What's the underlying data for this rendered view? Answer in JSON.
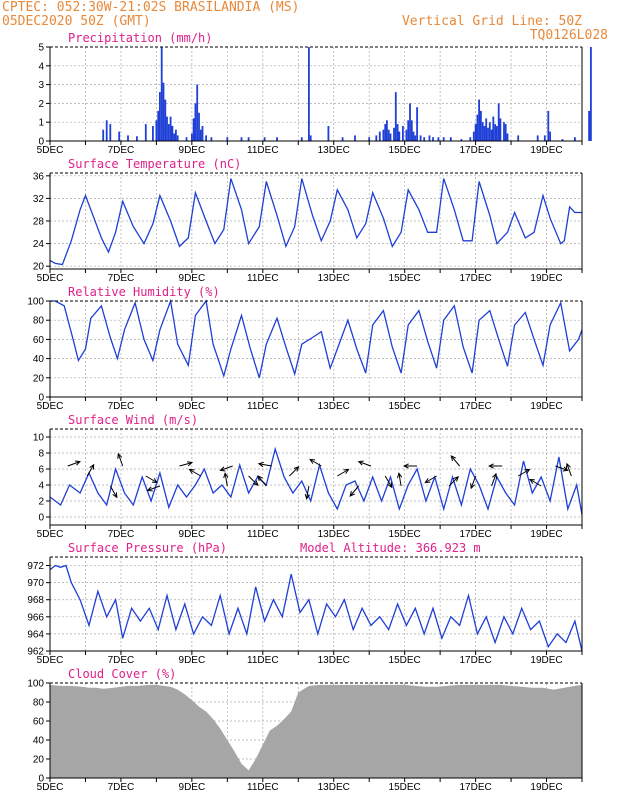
{
  "header": {
    "line1_left": "CPTEC:  052:30W-21:02S  BRASILANDIA (MS)",
    "line2_left": "05DEC2020 50Z (GMT)",
    "line1_right": "Vertical Grid Line: 50Z",
    "line2_right": "TQ0126L028"
  },
  "colors": {
    "header": "#e8893a",
    "title": "#e0208a",
    "line": "#1f3fd6",
    "cloud": "#a6a6a6",
    "grid": "#aaaaaa"
  },
  "chart_data": [
    {
      "type": "bar",
      "title": "Precipitation (mm/h)",
      "ylim": [
        0,
        5
      ],
      "yticks": [
        0,
        1,
        2,
        3,
        4,
        5
      ],
      "x_tick_labels": [
        "5DEC",
        "7DEC",
        "9DEC",
        "11DEC",
        "13DEC",
        "15DEC",
        "17DEC",
        "19DEC"
      ],
      "x_range_days": [
        0,
        15
      ],
      "bars": [
        [
          1.5,
          0.6
        ],
        [
          1.6,
          1.1
        ],
        [
          1.7,
          0.9
        ],
        [
          1.95,
          0.5
        ],
        [
          2.2,
          0.3
        ],
        [
          2.45,
          0.25
        ],
        [
          2.7,
          0.9
        ],
        [
          2.9,
          0.8
        ],
        [
          3.0,
          1.1
        ],
        [
          3.05,
          1.6
        ],
        [
          3.1,
          2.6
        ],
        [
          3.15,
          5.0
        ],
        [
          3.2,
          3.1
        ],
        [
          3.25,
          2.2
        ],
        [
          3.3,
          1.3
        ],
        [
          3.35,
          0.9
        ],
        [
          3.4,
          1.3
        ],
        [
          3.45,
          0.8
        ],
        [
          3.5,
          0.4
        ],
        [
          3.55,
          0.6
        ],
        [
          3.6,
          0.3
        ],
        [
          3.85,
          0.2
        ],
        [
          4.0,
          0.4
        ],
        [
          4.05,
          1.2
        ],
        [
          4.1,
          2.0
        ],
        [
          4.15,
          3.0
        ],
        [
          4.2,
          1.5
        ],
        [
          4.25,
          0.6
        ],
        [
          4.3,
          0.8
        ],
        [
          4.4,
          0.3
        ],
        [
          4.55,
          0.2
        ],
        [
          5.0,
          0.2
        ],
        [
          5.4,
          0.2
        ],
        [
          5.6,
          0.2
        ],
        [
          6.05,
          0.2
        ],
        [
          6.4,
          0.2
        ],
        [
          7.1,
          0.2
        ],
        [
          7.3,
          5.0
        ],
        [
          7.35,
          0.3
        ],
        [
          7.85,
          0.8
        ],
        [
          8.25,
          0.2
        ],
        [
          8.6,
          0.3
        ],
        [
          9.0,
          0.2
        ],
        [
          9.2,
          0.3
        ],
        [
          9.3,
          0.5
        ],
        [
          9.4,
          0.6
        ],
        [
          9.45,
          0.9
        ],
        [
          9.5,
          1.1
        ],
        [
          9.55,
          0.6
        ],
        [
          9.6,
          0.4
        ],
        [
          9.7,
          0.7
        ],
        [
          9.75,
          2.6
        ],
        [
          9.8,
          0.9
        ],
        [
          9.85,
          0.5
        ],
        [
          9.95,
          0.8
        ],
        [
          10.05,
          0.6
        ],
        [
          10.1,
          1.1
        ],
        [
          10.15,
          2.0
        ],
        [
          10.2,
          1.1
        ],
        [
          10.25,
          0.5
        ],
        [
          10.3,
          0.3
        ],
        [
          10.35,
          1.8
        ],
        [
          10.45,
          0.3
        ],
        [
          10.55,
          0.2
        ],
        [
          10.7,
          0.3
        ],
        [
          10.8,
          0.2
        ],
        [
          10.95,
          0.2
        ],
        [
          11.1,
          0.2
        ],
        [
          11.3,
          0.2
        ],
        [
          11.6,
          0.1
        ],
        [
          11.85,
          0.2
        ],
        [
          11.95,
          0.5
        ],
        [
          12.0,
          0.9
        ],
        [
          12.05,
          1.4
        ],
        [
          12.1,
          2.2
        ],
        [
          12.15,
          1.6
        ],
        [
          12.2,
          1.0
        ],
        [
          12.25,
          0.8
        ],
        [
          12.3,
          1.2
        ],
        [
          12.35,
          0.7
        ],
        [
          12.4,
          1.0
        ],
        [
          12.45,
          0.6
        ],
        [
          12.5,
          1.3
        ],
        [
          12.55,
          0.9
        ],
        [
          12.6,
          0.8
        ],
        [
          12.65,
          2.0
        ],
        [
          12.7,
          1.2
        ],
        [
          12.8,
          1.0
        ],
        [
          12.85,
          0.9
        ],
        [
          12.9,
          0.4
        ],
        [
          13.2,
          0.3
        ],
        [
          13.75,
          0.3
        ],
        [
          13.95,
          0.3
        ],
        [
          14.05,
          1.6
        ],
        [
          14.1,
          0.5
        ],
        [
          14.45,
          0.1
        ],
        [
          14.8,
          0.2
        ],
        [
          15.2,
          1.6
        ],
        [
          15.25,
          5.0
        ]
      ]
    },
    {
      "type": "line",
      "title": "Surface Temperature (nC)",
      "ylim": [
        19.5,
        36.5
      ],
      "yticks": [
        20,
        24,
        28,
        32,
        36
      ],
      "x_tick_labels": [
        "5DEC",
        "7DEC",
        "9DEC",
        "11DEC",
        "13DEC",
        "15DEC",
        "17DEC",
        "19DEC"
      ],
      "x_range_days": [
        0,
        15
      ],
      "x": [
        0,
        0.15,
        0.35,
        0.6,
        0.85,
        1.0,
        1.15,
        1.45,
        1.65,
        1.85,
        2.05,
        2.35,
        2.65,
        2.9,
        3.1,
        3.4,
        3.65,
        3.9,
        4.1,
        4.4,
        4.65,
        4.9,
        5.1,
        5.4,
        5.6,
        5.9,
        6.1,
        6.4,
        6.65,
        6.9,
        7.1,
        7.4,
        7.65,
        7.9,
        8.1,
        8.4,
        8.65,
        8.9,
        9.1,
        9.4,
        9.65,
        9.9,
        10.1,
        10.4,
        10.65,
        10.9,
        11.1,
        11.4,
        11.65,
        11.9,
        12.1,
        12.4,
        12.6,
        12.9,
        13.1,
        13.4,
        13.65,
        13.9,
        14.1,
        14.4,
        14.5,
        14.65,
        14.8,
        15.0
      ],
      "values": [
        21,
        20.5,
        20.3,
        24.5,
        30,
        32.5,
        30,
        25,
        22.5,
        26,
        31.5,
        27,
        24,
        27.5,
        32.5,
        28,
        23.5,
        25,
        33,
        28,
        24,
        26.5,
        35.5,
        30,
        24,
        27,
        35,
        29,
        23.5,
        27,
        35.5,
        29,
        24.5,
        28,
        33.5,
        30,
        25,
        27.5,
        33,
        28.5,
        23.5,
        26,
        33.5,
        30,
        26,
        26,
        35.5,
        30,
        24.5,
        24.5,
        35,
        29,
        24,
        26,
        29.5,
        25,
        26,
        32.5,
        28.5,
        24,
        24.5,
        30.5,
        29.5,
        29.5
      ]
    },
    {
      "type": "line",
      "title": "Relative Humidity (%)",
      "ylim": [
        0,
        100
      ],
      "yticks": [
        0,
        20,
        40,
        60,
        80,
        100
      ],
      "x_tick_labels": [
        "5DEC",
        "7DEC",
        "9DEC",
        "11DEC",
        "13DEC",
        "15DEC",
        "17DEC",
        "19DEC"
      ],
      "x_range_days": [
        0,
        15
      ],
      "x": [
        0,
        0.15,
        0.4,
        0.65,
        0.8,
        1.0,
        1.15,
        1.45,
        1.7,
        1.9,
        2.1,
        2.4,
        2.65,
        2.9,
        3.1,
        3.4,
        3.6,
        3.9,
        4.1,
        4.4,
        4.6,
        4.9,
        5.1,
        5.4,
        5.65,
        5.9,
        6.1,
        6.4,
        6.65,
        6.9,
        7.1,
        7.4,
        7.65,
        7.9,
        8.1,
        8.4,
        8.65,
        8.9,
        9.1,
        9.4,
        9.65,
        9.9,
        10.1,
        10.4,
        10.65,
        10.9,
        11.1,
        11.4,
        11.65,
        11.9,
        12.1,
        12.4,
        12.65,
        12.9,
        13.1,
        13.4,
        13.65,
        13.9,
        14.1,
        14.4,
        14.65,
        14.9,
        15.0
      ],
      "values": [
        100,
        100,
        95,
        60,
        38,
        50,
        82,
        95,
        62,
        40,
        70,
        98,
        60,
        38,
        70,
        100,
        55,
        33,
        85,
        100,
        55,
        22,
        50,
        85,
        50,
        20,
        55,
        82,
        52,
        24,
        55,
        62,
        68,
        30,
        50,
        80,
        50,
        25,
        75,
        90,
        52,
        25,
        75,
        90,
        58,
        30,
        80,
        95,
        52,
        25,
        80,
        90,
        60,
        32,
        75,
        88,
        60,
        33,
        75,
        98,
        48,
        60,
        70
      ]
    },
    {
      "type": "line",
      "title": "Surface Wind (m/s)",
      "ylim": [
        -1,
        11
      ],
      "yticks": [
        0,
        2,
        4,
        6,
        8,
        10
      ],
      "x_tick_labels": [
        "5DEC",
        "7DEC",
        "9DEC",
        "11DEC",
        "13DEC",
        "15DEC",
        "17DEC",
        "19DEC"
      ],
      "x_range_days": [
        0,
        15
      ],
      "x": [
        0,
        0.3,
        0.55,
        0.85,
        1.1,
        1.35,
        1.6,
        1.85,
        2.1,
        2.35,
        2.6,
        2.85,
        3.1,
        3.35,
        3.6,
        3.85,
        4.1,
        4.35,
        4.6,
        4.85,
        5.1,
        5.35,
        5.6,
        5.85,
        6.1,
        6.35,
        6.6,
        6.85,
        7.1,
        7.35,
        7.6,
        7.85,
        8.1,
        8.35,
        8.6,
        8.85,
        9.1,
        9.35,
        9.6,
        9.85,
        10.1,
        10.35,
        10.6,
        10.85,
        11.1,
        11.35,
        11.6,
        11.85,
        12.1,
        12.35,
        12.6,
        12.85,
        13.1,
        13.35,
        13.6,
        13.85,
        14.1,
        14.35,
        14.6,
        14.85,
        15.0
      ],
      "values": [
        2.5,
        1.5,
        4,
        3,
        5.5,
        3,
        1.5,
        6,
        3,
        1.5,
        5,
        2,
        5.5,
        1.2,
        4,
        2.5,
        4,
        6,
        3,
        4,
        2.5,
        6.5,
        3,
        5,
        4,
        8.5,
        5,
        3,
        4.5,
        2,
        6.5,
        3,
        1,
        4,
        4.5,
        2,
        5,
        2,
        5,
        1,
        4,
        6,
        2,
        5,
        1,
        5,
        1.5,
        6,
        4,
        1,
        5,
        3,
        1.5,
        7,
        3,
        5,
        2,
        7.5,
        1,
        4,
        0.3
      ],
      "arrow_x": [
        0.5,
        1.05,
        1.7,
        2.05,
        2.7,
        3.1,
        3.65,
        4.25,
        5.0,
        5.15,
        5.6,
        6.1,
        6.25,
        6.75,
        7.3,
        7.65,
        8.1,
        8.7,
        9.05,
        9.45,
        9.9,
        10.35,
        10.9,
        11.25,
        11.55,
        12.0,
        12.45,
        12.75,
        13.2,
        13.85,
        14.25,
        14.7
      ]
    },
    {
      "type": "line",
      "title": "Surface Pressure (hPa)",
      "annotation": "Model Altitude: 366.923 m",
      "ylim": [
        962,
        973
      ],
      "yticks": [
        962,
        964,
        966,
        968,
        970,
        972
      ],
      "x_tick_labels": [
        "5DEC",
        "7DEC",
        "9DEC",
        "11DEC",
        "13DEC",
        "15DEC",
        "17DEC",
        "19DEC"
      ],
      "x_range_days": [
        0,
        15
      ],
      "x": [
        0,
        0.15,
        0.3,
        0.45,
        0.6,
        0.85,
        1.1,
        1.35,
        1.6,
        1.85,
        2.05,
        2.3,
        2.55,
        2.8,
        3.05,
        3.3,
        3.55,
        3.8,
        4.05,
        4.3,
        4.55,
        4.8,
        5.05,
        5.3,
        5.55,
        5.8,
        6.05,
        6.3,
        6.55,
        6.8,
        7.05,
        7.3,
        7.55,
        7.8,
        8.05,
        8.3,
        8.55,
        8.8,
        9.05,
        9.3,
        9.55,
        9.8,
        10.05,
        10.3,
        10.55,
        10.8,
        11.05,
        11.3,
        11.55,
        11.8,
        12.05,
        12.3,
        12.55,
        12.8,
        13.05,
        13.3,
        13.55,
        13.8,
        14.05,
        14.3,
        14.55,
        14.8,
        15.0
      ],
      "values": [
        971.5,
        972,
        971.8,
        972,
        970,
        968,
        965,
        969,
        966,
        968,
        963.5,
        967,
        965.5,
        967,
        964.5,
        968.5,
        964.5,
        967.5,
        964,
        966,
        965,
        968.5,
        964,
        967,
        964,
        969.5,
        965.5,
        968,
        966,
        971,
        966.5,
        968,
        964,
        967.5,
        966,
        968,
        964.5,
        967,
        965,
        966,
        964.5,
        967.5,
        965,
        967,
        964,
        967,
        963.5,
        966,
        965,
        968.5,
        964,
        966,
        963,
        966,
        964,
        967,
        964.5,
        965.5,
        962.5,
        964,
        963,
        965.5,
        962
      ]
    },
    {
      "type": "area",
      "title": "Cloud Cover (%)",
      "ylim": [
        0,
        100
      ],
      "yticks": [
        0,
        20,
        40,
        60,
        80,
        100
      ],
      "x_tick_labels": [
        "5DEC",
        "7DEC",
        "9DEC",
        "11DEC",
        "13DEC",
        "15DEC",
        "17DEC",
        "19DEC"
      ],
      "x_range_days": [
        0,
        15
      ],
      "x": [
        0,
        0.3,
        0.6,
        0.9,
        1.1,
        1.3,
        1.5,
        1.8,
        2.0,
        2.2,
        2.5,
        2.8,
        3.0,
        3.2,
        3.4,
        3.6,
        3.8,
        4.0,
        4.2,
        4.4,
        4.6,
        4.8,
        5.0,
        5.2,
        5.4,
        5.6,
        5.8,
        6.0,
        6.2,
        6.4,
        6.6,
        6.8,
        7.0,
        7.3,
        7.6,
        7.9,
        8.2,
        8.5,
        8.8,
        9.1,
        9.4,
        9.7,
        10.0,
        10.3,
        10.6,
        10.9,
        11.2,
        11.5,
        11.8,
        12.1,
        12.4,
        12.7,
        13.0,
        13.3,
        13.6,
        13.9,
        14.2,
        14.5,
        14.8,
        15.0
      ],
      "values": [
        98,
        97,
        97,
        96,
        95,
        95,
        94,
        95,
        96,
        97,
        97,
        98,
        98,
        97,
        96,
        93,
        88,
        82,
        75,
        70,
        62,
        52,
        40,
        28,
        15,
        8,
        20,
        35,
        50,
        55,
        62,
        70,
        90,
        97,
        98,
        98,
        98,
        98,
        98,
        98,
        98,
        98,
        98,
        97,
        96,
        96,
        97,
        98,
        98,
        98,
        98,
        98,
        97,
        96,
        95,
        95,
        93,
        95,
        97,
        98
      ]
    }
  ]
}
